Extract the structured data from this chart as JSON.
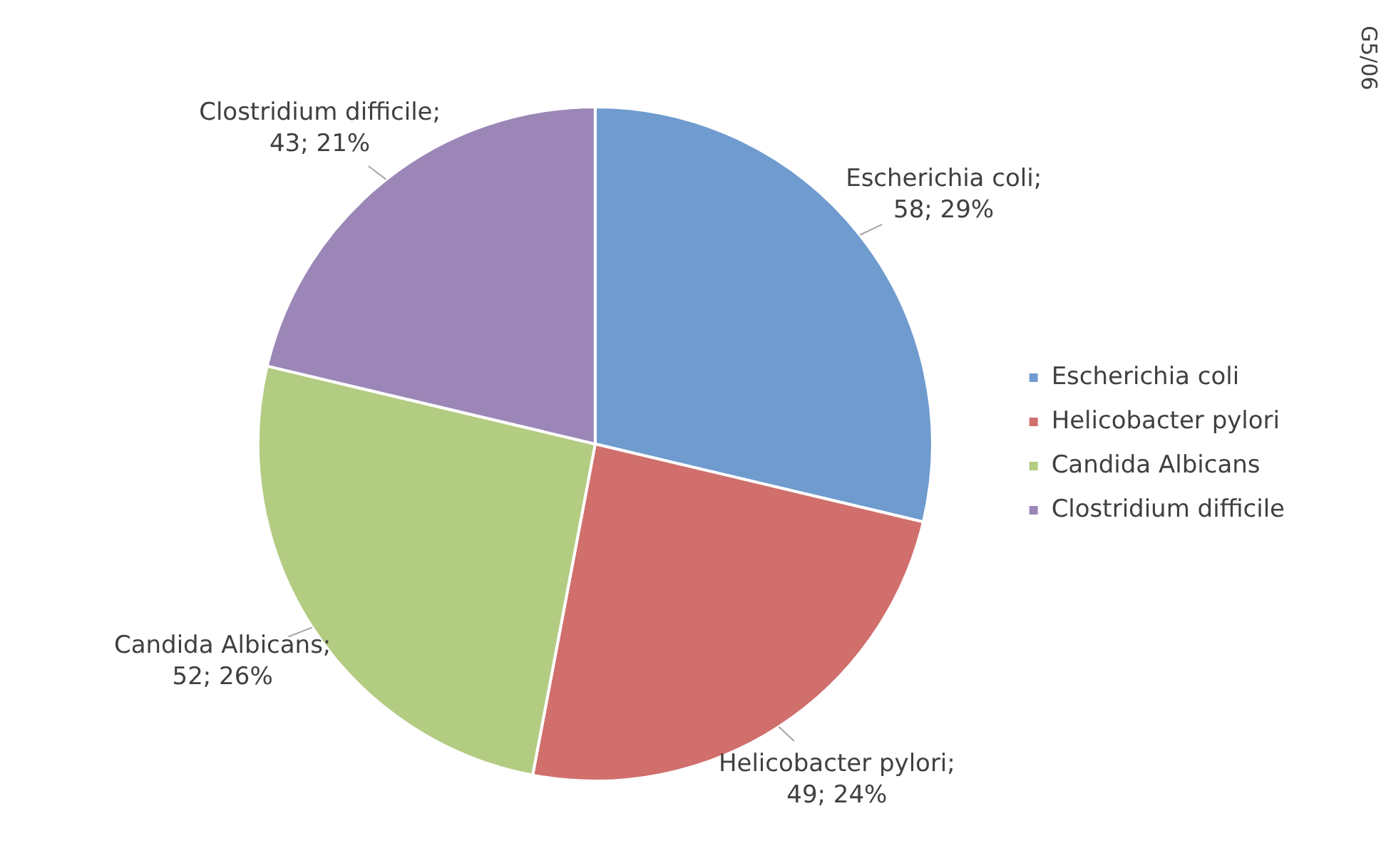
{
  "chart_data": {
    "type": "pie",
    "categories": [
      "Escherichia coli",
      "Helicobacter pylori",
      "Candida Albicans",
      "Clostridium difficile"
    ],
    "values": [
      58,
      49,
      52,
      43
    ],
    "colors": [
      "#6f9bcf",
      "#d06f6c",
      "#b2cc82",
      "#9c86b7"
    ],
    "value_labels": [
      "Escherichia coli; 58; 29%",
      "Helicobacter pylori; 49; 24%",
      "Candida Albicans; 52; 26%",
      "Clostridium difficile; 43; 21%"
    ],
    "legend": "right",
    "annotations": [
      "G5/06"
    ]
  }
}
